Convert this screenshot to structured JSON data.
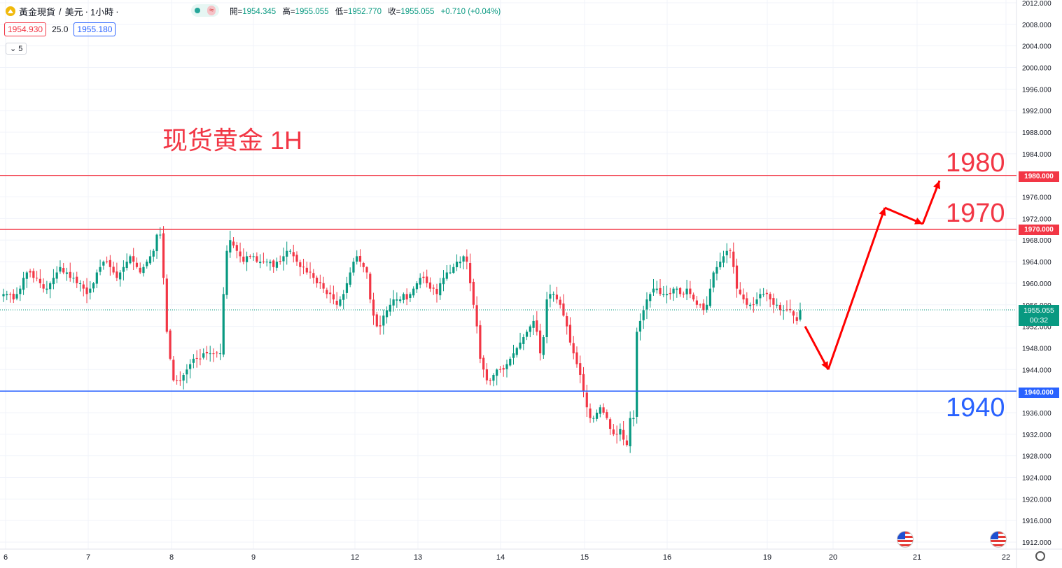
{
  "header": {
    "symbol": "黃金現貨",
    "sep1": "/",
    "currency": "美元",
    "dot1": "·",
    "interval": "1小時",
    "dot2": "·",
    "open_key": "開=",
    "open_val": "1954.345",
    "high_key": "高=",
    "high_val": "1955.055",
    "low_key": "低=",
    "low_val": "1952.770",
    "close_key": "收=",
    "close_val": "1955.055",
    "change": "+0.710 (+0.04%)",
    "live_icon": "green-dot",
    "wave_glyph": "≈"
  },
  "trade": {
    "bid": "1954.930",
    "spread": "25.0",
    "ask": "1955.180"
  },
  "indicator_button": "5",
  "annotation": {
    "title": "现货黄金 1H"
  },
  "levels": [
    {
      "label": "1980",
      "tag": "1980.000",
      "color": "#f23645",
      "price": 1980
    },
    {
      "label": "1970",
      "tag": "1970.000",
      "color": "#f23645",
      "price": 1970
    },
    {
      "label": "1940",
      "tag": "1940.000",
      "color": "#2962ff",
      "price": 1940
    }
  ],
  "current": {
    "price": "1955.055",
    "countdown": "00:32",
    "color": "#089981"
  },
  "colors": {
    "up": "#089981",
    "down": "#f23645",
    "arrow": "#ff0000"
  },
  "chart_data": {
    "type": "candlestick",
    "title": "现货黄金 1H",
    "xlabel": "",
    "ylabel": "",
    "ylim": [
      1909.8,
      2013.2
    ],
    "y_ticks": [
      "2012.000",
      "2008.000",
      "2004.000",
      "2000.000",
      "1996.000",
      "1992.000",
      "1988.000",
      "1984.000",
      "1980.000",
      "1976.000",
      "1972.000",
      "1968.000",
      "1964.000",
      "1960.000",
      "1956.000",
      "1952.000",
      "1948.000",
      "1944.000",
      "1940.000",
      "1936.000",
      "1932.000",
      "1928.000",
      "1924.000",
      "1920.000",
      "1916.000",
      "1912.000"
    ],
    "x_ticks": [
      "6",
      "7",
      "8",
      "9",
      "12",
      "13",
      "14",
      "15",
      "16",
      "19",
      "20",
      "21",
      "22"
    ],
    "grid": true,
    "horizontal_lines": [
      1980,
      1970,
      1940
    ],
    "current_price": 1955.055,
    "anchor_values": [
      [
        1958,
        1958,
        1958,
        1957,
        1958,
        1959,
        1961,
        1962,
        1962,
        1961,
        1961,
        1960,
        1959,
        1959,
        1960,
        1961,
        1962,
        1963,
        1962,
        1962,
        1961,
        1961,
        1960,
        1960,
        1959,
        1958,
        1959,
        1960,
        1962,
        1963,
        1964,
        1964,
        1963,
        1962,
        1961,
        1962,
        1963,
        1964,
        1965,
        1964,
        1963,
        1962,
        1963,
        1964,
        1965,
        1966,
        1969
      ],
      [
        1969,
        1961,
        1951,
        1946,
        1942,
        1942,
        1942,
        1943,
        1944,
        1945,
        1946,
        1946,
        1946,
        1947,
        1947,
        1947,
        1947,
        1947,
        1947,
        1958,
        1966,
        1968,
        1967,
        1966,
        1965,
        1964,
        1965,
        1965,
        1965,
        1964,
        1964,
        1964,
        1964,
        1964,
        1963,
        1964,
        1964,
        1965,
        1966,
        1966,
        1965,
        1964,
        1963,
        1963,
        1962,
        1962,
        1961,
        1960,
        1960,
        1959,
        1958,
        1958,
        1957,
        1956,
        1957,
        1958,
        1960,
        1962,
        1964,
        1965,
        1964,
        1963,
        1962,
        1957,
        1954,
        1952
      ],
      [
        1952,
        1954,
        1955,
        1956,
        1957,
        1957,
        1957,
        1958,
        1957,
        1958,
        1959,
        1960,
        1961,
        1961,
        1960,
        1959,
        1959,
        1958,
        1960,
        1961,
        1962,
        1962,
        1963,
        1964,
        1964,
        1965,
        1964,
        1960,
        1956,
        1952,
        1946,
        1944,
        1942,
        1942,
        1943,
        1944,
        1944,
        1944,
        1945,
        1946,
        1947,
        1948,
        1949,
        1950,
        1951,
        1952,
        1953,
        1951,
        1947,
        1950,
        1957,
        1958,
        1958,
        1957,
        1956,
        1954,
        1952,
        1949,
        1947,
        1945,
        1943,
        1940,
        1937,
        1935,
        1935,
        1936,
        1937,
        1936,
        1935,
        1933,
        1932,
        1932,
        1933,
        1931,
        1930,
        1935
      ],
      [
        1935,
        1951,
        1953,
        1955,
        1957,
        1958,
        1959,
        1959,
        1958,
        1958,
        1958,
        1958,
        1959,
        1959,
        1958,
        1958,
        1959,
        1958,
        1957,
        1956,
        1956,
        1955,
        1956,
        1959,
        1962,
        1963,
        1964,
        1965,
        1966,
        1966,
        1963,
        1959,
        1958,
        1957,
        1956,
        1956,
        1956,
        1957,
        1958,
        1958,
        1958,
        1957,
        1956,
        1956,
        1955,
        1955,
        1955,
        1955,
        1954,
        1953,
        1955
      ]
    ],
    "projection_path": [
      {
        "x": "19",
        "y": 1952
      },
      {
        "x": "20",
        "y": 1944
      },
      {
        "x": "21",
        "y": 1974
      },
      {
        "x": "21",
        "y": 1971
      },
      {
        "x": "21",
        "y": 1979
      }
    ]
  }
}
